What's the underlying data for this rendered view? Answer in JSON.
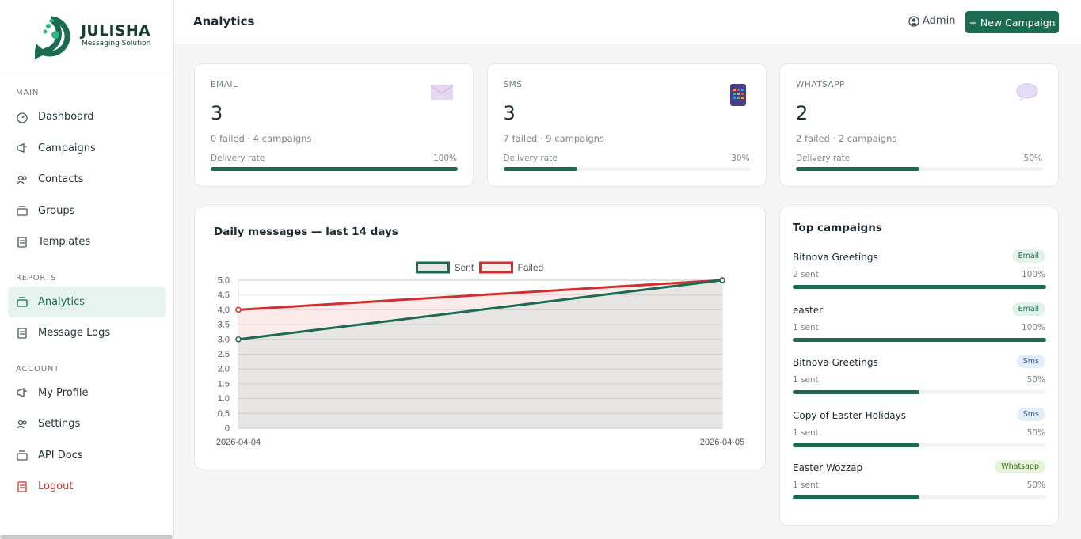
{
  "brand": {
    "name": "JULISHA",
    "tagline": "Messaging Solution"
  },
  "sidebar": {
    "sections": [
      {
        "title": "MAIN",
        "items": [
          "Dashboard",
          "Campaigns",
          "Contacts",
          "Groups",
          "Templates"
        ]
      },
      {
        "title": "REPORTS",
        "items": [
          "Analytics",
          "Message Logs"
        ]
      },
      {
        "title": "ACCOUNT",
        "items": [
          "My Profile",
          "Settings",
          "API Docs",
          "Logout"
        ]
      }
    ]
  },
  "header": {
    "title": "Analytics",
    "user": "Admin",
    "button": "+ New Campaign"
  },
  "stats": [
    {
      "label": "EMAIL",
      "value": 3,
      "detail": "0 failed · 4 campaigns",
      "rate_title": "Delivery rate",
      "rate": {
        "value": 100,
        "label": "100%"
      }
    },
    {
      "label": "SMS",
      "value": 3,
      "detail": "7 failed · 9 campaigns",
      "rate_title": "Delivery rate",
      "rate": {
        "value": 30,
        "label": "30%"
      }
    },
    {
      "label": "WHATSAPP",
      "value": 2,
      "detail": "2 failed · 2 campaigns",
      "rate_title": "Delivery rate",
      "rate": {
        "value": 50,
        "label": "50%"
      }
    }
  ],
  "chart_data": {
    "type": "line",
    "title": "Daily messages — last 14 days",
    "categories": [
      "2026-04-04",
      "2026-04-05"
    ],
    "series": [
      {
        "name": "Sent",
        "color": "#1b6b52",
        "fill": "#e6e5e3",
        "values": [
          3,
          5
        ]
      },
      {
        "name": "Failed",
        "color": "#d32f2f",
        "fill": "#fbeceb",
        "values": [
          4,
          5
        ]
      }
    ],
    "ylim": [
      0,
      5
    ],
    "yticks": [
      0,
      0.5,
      {
        "value": 1,
        "label": "1.0"
      },
      1.5,
      {
        "value": 2,
        "label": "2.0"
      },
      2.5,
      {
        "value": 3,
        "label": "3.0"
      },
      3.5,
      {
        "value": 4,
        "label": "4.0"
      },
      4.5,
      {
        "value": 5,
        "label": "5.0"
      }
    ],
    "grid": true,
    "legend": "top"
  },
  "top_campaigns": {
    "title": "Top campaigns",
    "items": [
      {
        "name": "Bitnova Greetings",
        "channel": "Email",
        "sent": "2 sent",
        "rate": {
          "value": 100,
          "label": "100%"
        }
      },
      {
        "name": "easter",
        "channel": "Email",
        "sent": "1 sent",
        "rate": {
          "value": 100,
          "label": "100%"
        }
      },
      {
        "name": "Bitnova Greetings",
        "channel": "Sms",
        "sent": "1 sent",
        "rate": {
          "value": 50,
          "label": "50%"
        }
      },
      {
        "name": "Copy of Easter Holidays",
        "channel": "Sms",
        "sent": "1 sent",
        "rate": {
          "value": 50,
          "label": "50%"
        }
      },
      {
        "name": "Easter Wozzap",
        "channel": "Whatsapp",
        "sent": "1 sent",
        "rate": {
          "value": 50,
          "label": "50%"
        }
      }
    ]
  }
}
